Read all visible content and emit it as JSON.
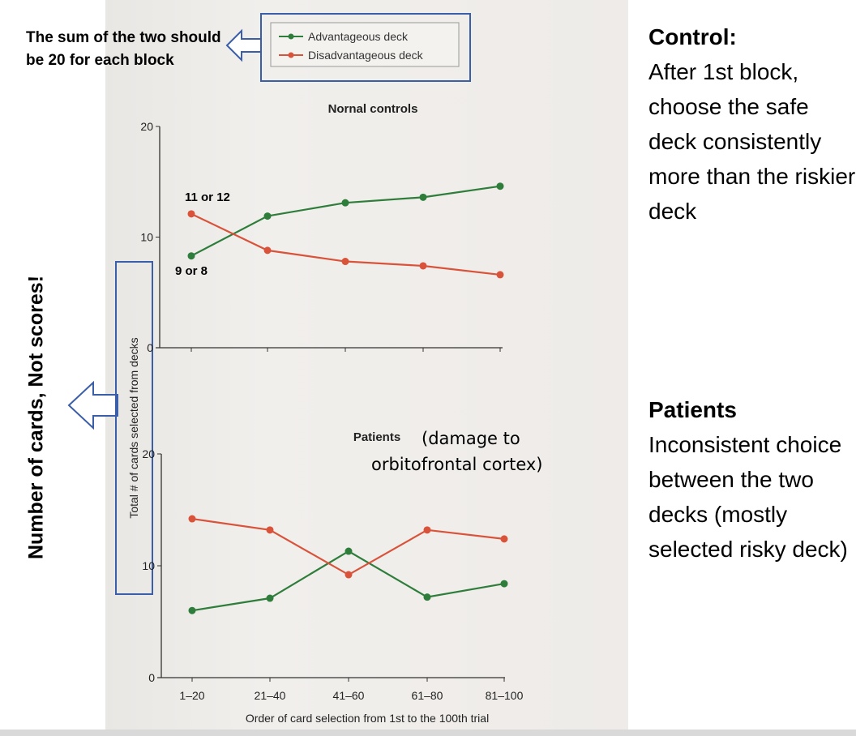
{
  "notes": {
    "sum_note": "The sum of the two should be 20 for each block",
    "vertical_note": "Number of cards, Not scores!"
  },
  "side": {
    "control_title": "Control:",
    "control_text": "After 1st block, choose the safe deck consistently more than the riskier deck",
    "patients_title": "Patients",
    "patients_text": "Inconsistent choice between the two decks (mostly selected risky deck)"
  },
  "annotations": {
    "top_red_start": "11 or 12",
    "top_green_start": "9 or 8",
    "patients_damage": [
      "(damage to",
      "orbitofrontal cortex)"
    ]
  },
  "colors": {
    "advantageous": "#2e7d3a",
    "disadvantageous": "#d9523a",
    "annotation_box": "#3b5ea8"
  },
  "chart_data": [
    {
      "type": "line",
      "title": "Nornal controls",
      "categories": [
        "1–20",
        "21–40",
        "41–60",
        "61–80",
        "81–100"
      ],
      "ylabel": "Total # of cards selected from decks",
      "yticks": [
        0,
        10,
        20
      ],
      "ylim": [
        0,
        20
      ],
      "legend": "top",
      "series": [
        {
          "name": "Advantageous deck",
          "color": "#2e7d3a",
          "values": [
            8.3,
            11.9,
            13.1,
            13.6,
            14.6
          ]
        },
        {
          "name": "Disadvantageous deck",
          "color": "#d9523a",
          "values": [
            12.1,
            8.8,
            7.8,
            7.4,
            6.6
          ]
        }
      ]
    },
    {
      "type": "line",
      "title": "Patients",
      "categories": [
        "1–20",
        "21–40",
        "41–60",
        "61–80",
        "81–100"
      ],
      "xlabel": "Order of card selection from 1st to the 100th trial",
      "yticks": [
        0,
        10,
        20
      ],
      "ylim": [
        0,
        20
      ],
      "series": [
        {
          "name": "Advantageous deck",
          "color": "#2e7d3a",
          "values": [
            6.0,
            7.1,
            11.3,
            7.2,
            8.4
          ]
        },
        {
          "name": "Disadvantageous deck",
          "color": "#d9523a",
          "values": [
            14.2,
            13.2,
            9.2,
            13.2,
            12.4
          ]
        }
      ]
    }
  ]
}
